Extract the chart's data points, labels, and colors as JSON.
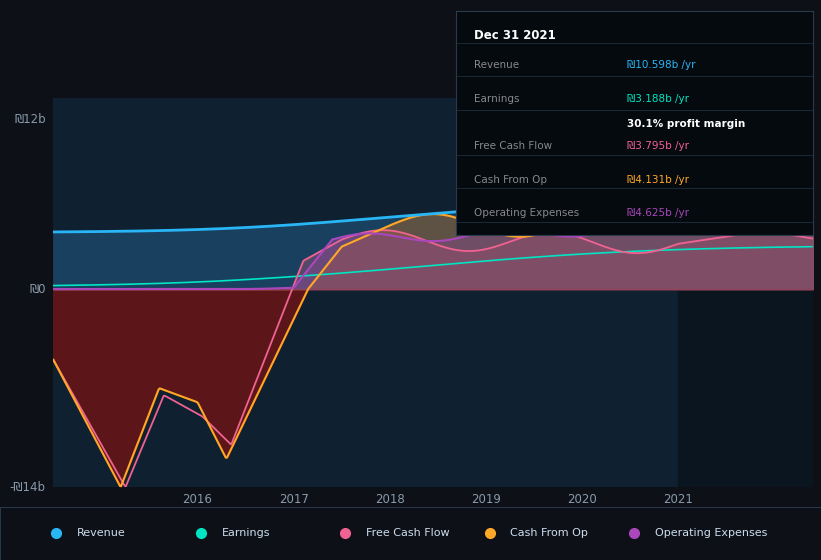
{
  "bg_color": "#0d1117",
  "plot_bg_dark": "#0b1622",
  "plot_bg_light": "#0f2030",
  "highlight_bg": "#0a1520",
  "y_label_top": "₪12b",
  "y_label_zero": "₪0",
  "y_label_bottom": "-₪14b",
  "ylim": [
    -14,
    13.5
  ],
  "xlim": [
    2014.5,
    2022.4
  ],
  "x_ticks": [
    2016,
    2017,
    2018,
    2019,
    2020,
    2021
  ],
  "colors": {
    "revenue": "#29b6f6",
    "earnings": "#00e5c3",
    "free_cash_flow": "#f06292",
    "cash_from_op": "#ffa726",
    "operating_expenses": "#ab47bc"
  },
  "legend": [
    {
      "label": "Revenue",
      "color": "#29b6f6"
    },
    {
      "label": "Earnings",
      "color": "#00e5c3"
    },
    {
      "label": "Free Cash Flow",
      "color": "#f06292"
    },
    {
      "label": "Cash From Op",
      "color": "#ffa726"
    },
    {
      "label": "Operating Expenses",
      "color": "#ab47bc"
    }
  ],
  "tooltip": {
    "date": "Dec 31 2021",
    "revenue_label": "Revenue",
    "revenue_val": "₪10.598b /yr",
    "earnings_label": "Earnings",
    "earnings_val": "₪3.188b /yr",
    "profit_margin": "30.1% profit margin",
    "fcf_label": "Free Cash Flow",
    "fcf_val": "₪3.795b /yr",
    "cfo_label": "Cash From Op",
    "cfo_val": "₪4.131b /yr",
    "opex_label": "Operating Expenses",
    "opex_val": "₪4.625b /yr",
    "bg_color": "#050a0f",
    "border_color": "#2a3a4a",
    "text_color": "#888888",
    "revenue_color": "#29b6f6",
    "earnings_color": "#00e5c3",
    "fcf_color": "#f06292",
    "cfo_color": "#ffa726",
    "opex_color": "#ab47bc",
    "white": "#ffffff"
  }
}
